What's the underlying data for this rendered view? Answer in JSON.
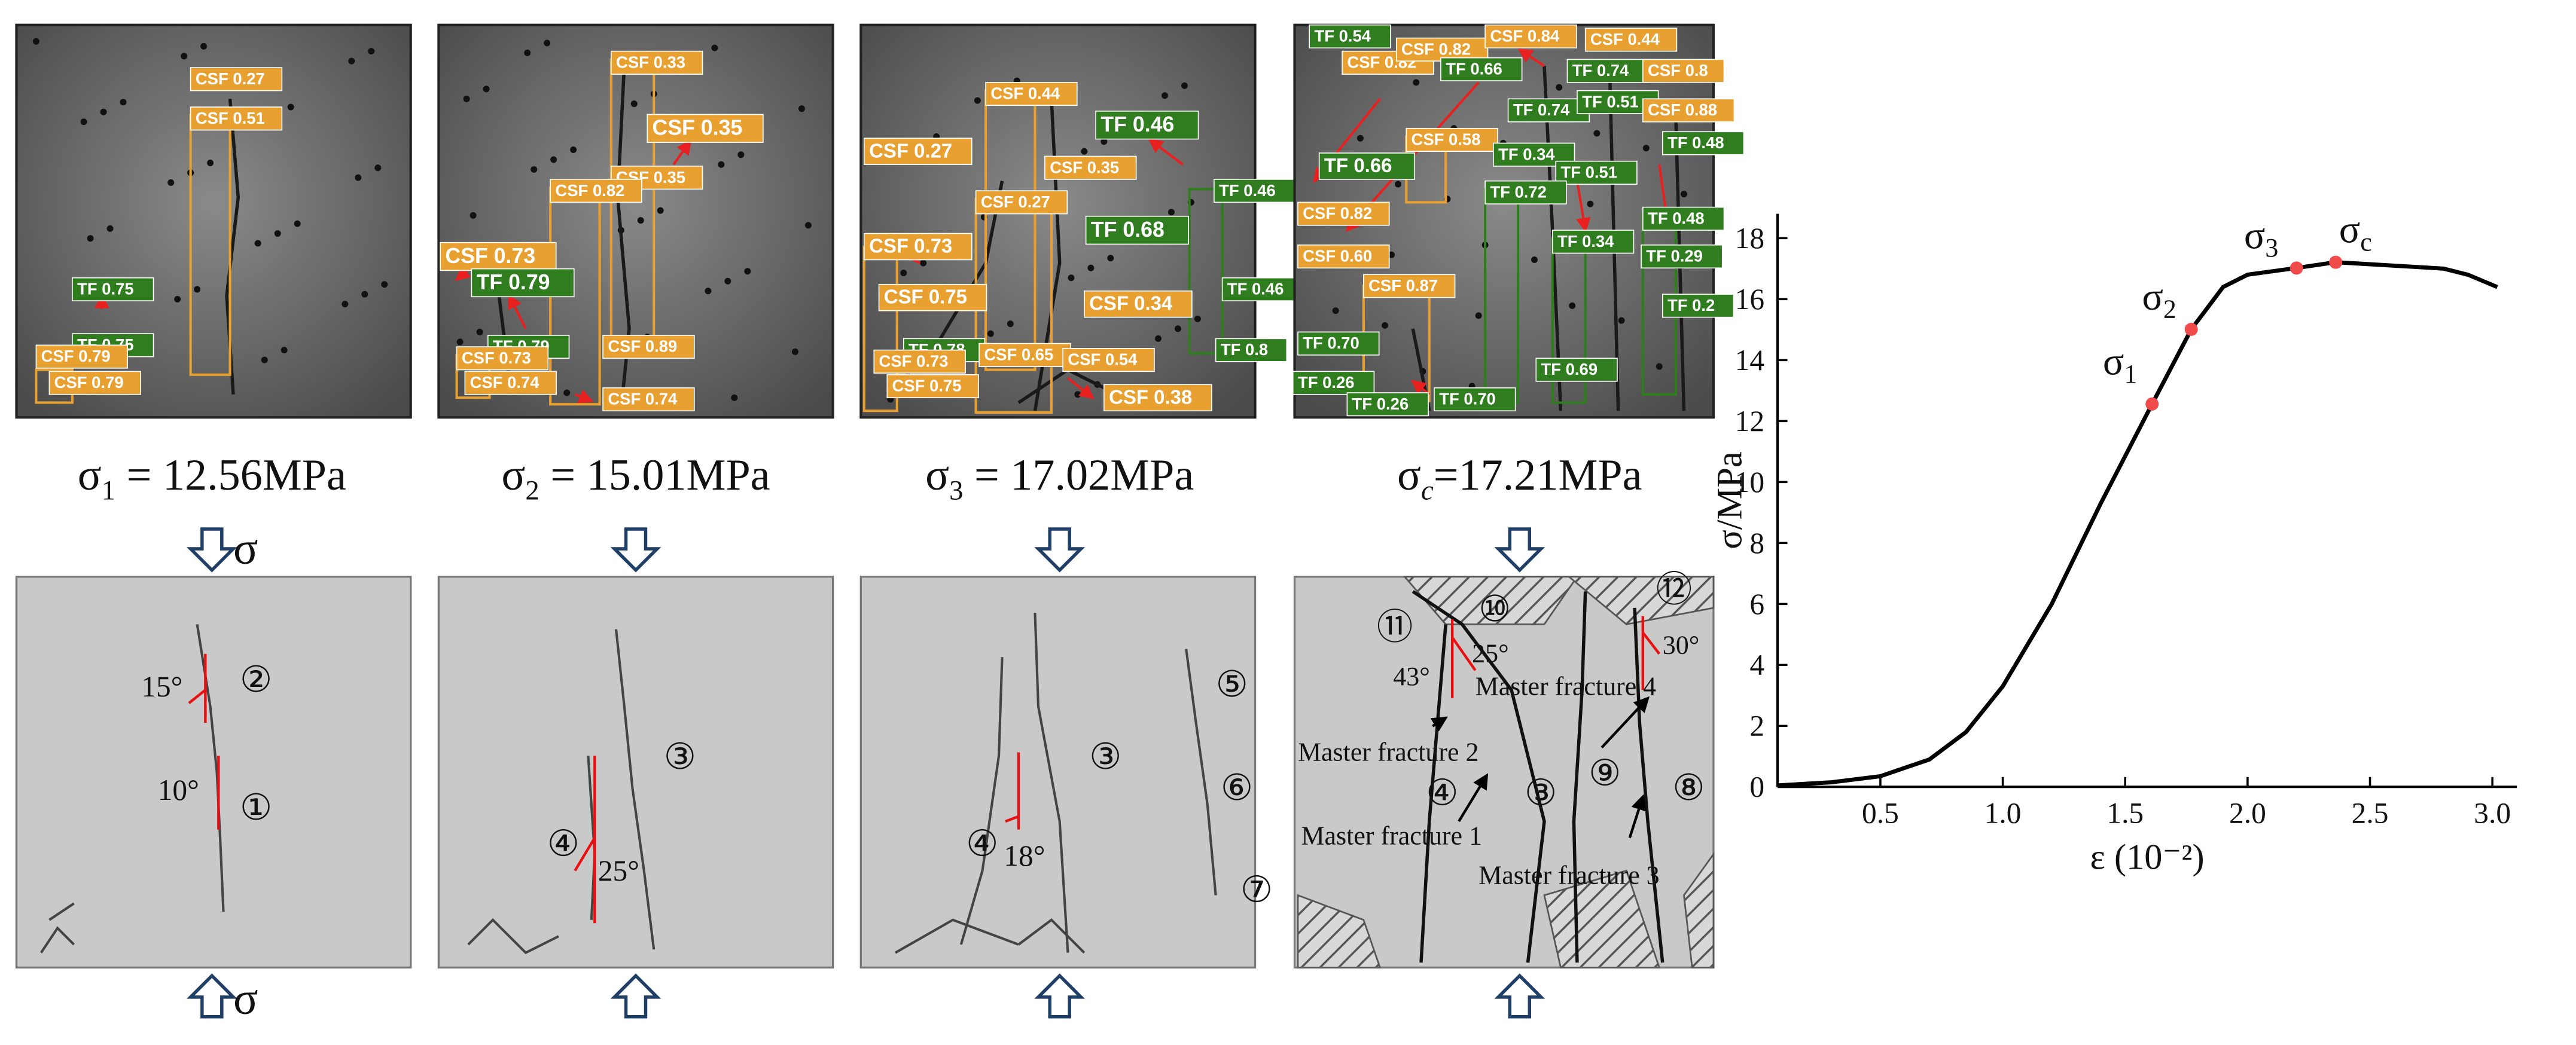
{
  "chart_data": {
    "type": "line",
    "x_label": "ε (10⁻²)",
    "y_label": "σ/MPa",
    "x": [
      0.08,
      0.3,
      0.5,
      0.7,
      0.85,
      1.0,
      1.2,
      1.4,
      1.61,
      1.77,
      1.9,
      2.0,
      2.2,
      2.36,
      2.6,
      2.8,
      2.9,
      3.02
    ],
    "series": [
      {
        "color": "#000000",
        "values": [
          0.05,
          0.15,
          0.35,
          0.9,
          1.8,
          3.3,
          6.0,
          9.3,
          12.56,
          15.01,
          16.4,
          16.8,
          17.02,
          17.21,
          17.1,
          17.0,
          16.8,
          16.4
        ]
      }
    ],
    "points": [
      {
        "symbol": "σ",
        "sub": "1",
        "x": 1.61,
        "y": 12.56
      },
      {
        "symbol": "σ",
        "sub": "2",
        "x": 1.77,
        "y": 15.01
      },
      {
        "symbol": "σ",
        "sub": "3",
        "x": 2.2,
        "y": 17.02
      },
      {
        "symbol": "σ",
        "sub": "c",
        "x": 2.36,
        "y": 17.21
      }
    ],
    "point_color": "#f04a4a",
    "xlim": [
      0.08,
      3.1
    ],
    "xticks": [
      0.5,
      {
        "value": 1.0,
        "label": "1.0"
      },
      1.5,
      {
        "value": 2.0,
        "label": "2.0"
      },
      2.5,
      {
        "value": 3.0,
        "label": "3.0"
      }
    ],
    "ylim": [
      0,
      18.8
    ],
    "yticks": [
      0,
      2,
      4,
      6,
      8,
      10,
      12,
      14,
      16,
      18
    ]
  },
  "captions": [
    {
      "symbol": "σ",
      "sub": "1",
      "text": " = 12.56MPa"
    },
    {
      "symbol": "σ",
      "sub": "2",
      "text": " = 15.01MPa"
    },
    {
      "symbol": "σ",
      "sub": "3",
      "text": " = 17.02MPa"
    },
    {
      "symbol": "σ",
      "sub": "c",
      "text": "=17.21MPa"
    }
  ],
  "load_symbols": [
    "σ",
    "σ"
  ],
  "photos": [
    {
      "labels": [
        {
          "text": "CSF 0.27",
          "color": "#e8a030"
        },
        {
          "text": "CSF 0.51",
          "color": "#e8a030"
        },
        {
          "text": "TF 0.75",
          "color": "#2f7d1e"
        },
        {
          "text": "TF 0.75",
          "color": "#2f7d1e"
        },
        {
          "text": "CSF 0.79",
          "color": "#e8a030"
        },
        {
          "text": "CSF 0.79",
          "color": "#e8a030"
        }
      ]
    },
    {
      "labels": [
        {
          "text": "CSF 0.33",
          "color": "#e8a030"
        },
        {
          "text": "CSF 0.35",
          "color": "#e8a030"
        },
        {
          "text": "CSF 0.35",
          "color": "#e8a030"
        },
        {
          "text": "CSF 0.82",
          "color": "#e8a030"
        },
        {
          "text": "CSF 0.73",
          "color": "#e8a030"
        },
        {
          "text": "TF 0.79",
          "color": "#2f7d1e"
        },
        {
          "text": "TF 0.79",
          "color": "#2f7d1e"
        },
        {
          "text": "CSF 0.89",
          "color": "#e8a030"
        },
        {
          "text": "CSF 0.73",
          "color": "#e8a030"
        },
        {
          "text": "CSF 0.74",
          "color": "#e8a030"
        },
        {
          "text": "CSF 0.74",
          "color": "#e8a030"
        }
      ]
    },
    {
      "labels": [
        {
          "text": "CSF 0.44",
          "color": "#e8a030"
        },
        {
          "text": "TF 0.46",
          "color": "#2f7d1e"
        },
        {
          "text": "CSF 0.27",
          "color": "#e8a030"
        },
        {
          "text": "CSF 0.35",
          "color": "#e8a030"
        },
        {
          "text": "CSF 0.27",
          "color": "#e8a030"
        },
        {
          "text": "TF 0.68",
          "color": "#2f7d1e"
        },
        {
          "text": "CSF 0.73",
          "color": "#e8a030"
        },
        {
          "text": "CSF 0.75",
          "color": "#e8a030"
        },
        {
          "text": "CSF 0.34",
          "color": "#e8a030"
        },
        {
          "text": "TF 0.46",
          "color": "#2f7d1e"
        },
        {
          "text": "TF 0.46",
          "color": "#2f7d1e"
        },
        {
          "text": "TF 0.78",
          "color": "#2f7d1e"
        },
        {
          "text": "CSF 0.65",
          "color": "#e8a030"
        },
        {
          "text": "CSF 0.54",
          "color": "#e8a030"
        },
        {
          "text": "CSF 0.73",
          "color": "#e8a030"
        },
        {
          "text": "CSF 0.75",
          "color": "#e8a030"
        },
        {
          "text": "CSF 0.38",
          "color": "#e8a030"
        },
        {
          "text": "TF 0.8",
          "color": "#2f7d1e"
        }
      ]
    },
    {
      "labels": [
        {
          "text": "TF 0.54",
          "color": "#2f7d1e"
        },
        {
          "text": "CSF 0.82",
          "color": "#e8a030"
        },
        {
          "text": "CSF 0.82",
          "color": "#e8a030"
        },
        {
          "text": "CSF 0.84",
          "color": "#e8a030"
        },
        {
          "text": "CSF 0.44",
          "color": "#e8a030"
        },
        {
          "text": "TF 0.66",
          "color": "#2f7d1e"
        },
        {
          "text": "TF 0.74",
          "color": "#2f7d1e"
        },
        {
          "text": "CSF 0.8",
          "color": "#e8a030"
        },
        {
          "text": "TF 0.74",
          "color": "#2f7d1e"
        },
        {
          "text": "TF 0.51",
          "color": "#2f7d1e"
        },
        {
          "text": "CSF 0.88",
          "color": "#e8a030"
        },
        {
          "text": "TF 0.48",
          "color": "#2f7d1e"
        },
        {
          "text": "CSF 0.58",
          "color": "#e8a030"
        },
        {
          "text": "TF 0.34",
          "color": "#2f7d1e"
        },
        {
          "text": "TF 0.66",
          "color": "#2f7d1e"
        },
        {
          "text": "TF 0.51",
          "color": "#2f7d1e"
        },
        {
          "text": "TF 0.72",
          "color": "#2f7d1e"
        },
        {
          "text": "CSF 0.82",
          "color": "#e8a030"
        },
        {
          "text": "TF 0.48",
          "color": "#2f7d1e"
        },
        {
          "text": "TF 0.34",
          "color": "#2f7d1e"
        },
        {
          "text": "CSF 0.60",
          "color": "#e8a030"
        },
        {
          "text": "TF 0.29",
          "color": "#2f7d1e"
        },
        {
          "text": "CSF 0.87",
          "color": "#e8a030"
        },
        {
          "text": "TF 0.2",
          "color": "#2f7d1e"
        },
        {
          "text": "TF 0.70",
          "color": "#2f7d1e"
        },
        {
          "text": "TF 0.69",
          "color": "#2f7d1e"
        },
        {
          "text": "TF 0.26",
          "color": "#2f7d1e"
        },
        {
          "text": "TF 0.26",
          "color": "#2f7d1e"
        },
        {
          "text": "TF 0.70",
          "color": "#2f7d1e"
        }
      ]
    }
  ],
  "sketches": [
    {
      "labels": [
        "15°",
        "②",
        "10°",
        "①"
      ]
    },
    {
      "labels": [
        "③",
        "④",
        "25°"
      ]
    },
    {
      "labels": [
        "③",
        "④",
        "18°",
        "⑤",
        "⑥",
        "⑦"
      ]
    },
    {
      "labels": [
        "⑪",
        "⑩",
        "25°",
        "43°",
        "⑫",
        "30°",
        "Master fracture 4",
        "Master fracture 2",
        "④",
        "③",
        "⑨",
        "⑧",
        "Master fracture 1",
        "Master fracture 3"
      ]
    }
  ]
}
